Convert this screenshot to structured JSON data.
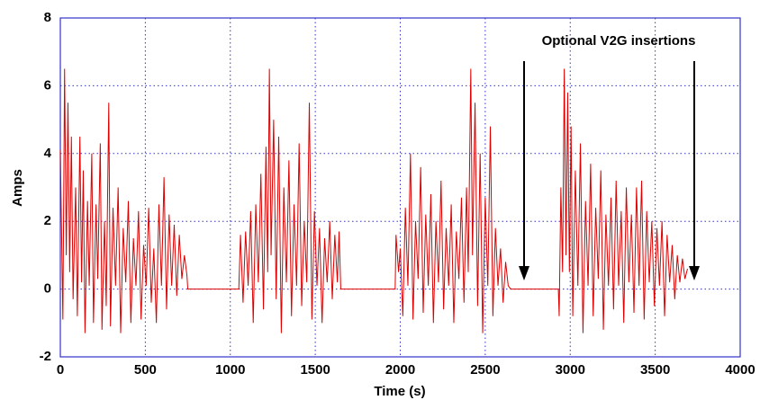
{
  "chart_data": {
    "type": "line",
    "xlabel": "Time (s)",
    "ylabel": "Amps",
    "annotation": "Optional V2G insertions",
    "color": "#dd0000",
    "grid": true,
    "xlim": [
      0,
      4000
    ],
    "ylim": [
      -2,
      8
    ],
    "xticks": [
      0,
      500,
      1000,
      1500,
      2000,
      2500,
      3000,
      3500,
      4000
    ],
    "yticks": [
      -2,
      0,
      2,
      4,
      6,
      8
    ],
    "x": [
      0,
      15,
      25,
      35,
      45,
      55,
      65,
      75,
      90,
      100,
      115,
      125,
      135,
      145,
      160,
      170,
      185,
      195,
      210,
      220,
      235,
      245,
      260,
      270,
      285,
      295,
      310,
      325,
      340,
      355,
      370,
      385,
      400,
      415,
      430,
      445,
      460,
      475,
      490,
      505,
      520,
      535,
      550,
      565,
      580,
      595,
      610,
      625,
      640,
      655,
      670,
      685,
      700,
      715,
      730,
      745,
      750,
      1050,
      1060,
      1075,
      1090,
      1105,
      1120,
      1135,
      1150,
      1165,
      1180,
      1195,
      1210,
      1220,
      1230,
      1240,
      1255,
      1270,
      1285,
      1300,
      1315,
      1330,
      1345,
      1360,
      1375,
      1390,
      1405,
      1420,
      1435,
      1450,
      1465,
      1480,
      1495,
      1510,
      1525,
      1540,
      1555,
      1570,
      1585,
      1600,
      1615,
      1630,
      1640,
      1650,
      1970,
      1975,
      1990,
      2000,
      2015,
      2030,
      2045,
      2060,
      2075,
      2090,
      2105,
      2120,
      2135,
      2150,
      2165,
      2180,
      2195,
      2210,
      2225,
      2240,
      2255,
      2270,
      2285,
      2300,
      2315,
      2330,
      2345,
      2360,
      2375,
      2390,
      2400,
      2415,
      2425,
      2440,
      2455,
      2470,
      2485,
      2500,
      2515,
      2530,
      2545,
      2560,
      2575,
      2590,
      2605,
      2620,
      2635,
      2650,
      2930,
      2935,
      2945,
      2955,
      2965,
      2975,
      2985,
      2995,
      3005,
      3015,
      3030,
      3045,
      3060,
      3075,
      3090,
      3105,
      3120,
      3135,
      3150,
      3165,
      3180,
      3195,
      3210,
      3225,
      3240,
      3255,
      3270,
      3285,
      3300,
      3315,
      3330,
      3345,
      3360,
      3375,
      3390,
      3405,
      3420,
      3435,
      3450,
      3465,
      3480,
      3495,
      3510,
      3525,
      3540,
      3555,
      3570,
      3585,
      3600,
      3615,
      3630,
      3645,
      3660,
      3675,
      3690
    ],
    "values": [
      4.1,
      -0.9,
      6.5,
      1.0,
      5.5,
      0.5,
      4.5,
      -0.3,
      3.0,
      -0.8,
      4.5,
      0.2,
      3.5,
      -1.3,
      2.6,
      0.1,
      4.0,
      -1.0,
      2.5,
      0.3,
      4.3,
      -1.2,
      2.0,
      -0.5,
      5.5,
      -1.1,
      2.4,
      0.1,
      3.0,
      -1.3,
      1.8,
      0.2,
      2.6,
      -1.0,
      1.5,
      0.1,
      2.3,
      -0.9,
      1.3,
      0.1,
      2.4,
      -0.4,
      1.2,
      -1.0,
      2.5,
      0.1,
      3.3,
      -0.6,
      2.2,
      0.1,
      1.9,
      -0.2,
      1.6,
      0.3,
      1.0,
      0.4,
      0,
      0,
      1.6,
      -0.4,
      1.7,
      0.1,
      2.3,
      -1.0,
      2.5,
      0.2,
      3.4,
      -0.6,
      4.2,
      0.5,
      6.5,
      1.0,
      5.0,
      -0.3,
      4.5,
      -1.3,
      3.0,
      0.2,
      3.8,
      -0.8,
      2.5,
      0.1,
      4.3,
      -0.5,
      2.0,
      0.2,
      5.5,
      -0.9,
      2.3,
      0.1,
      1.8,
      -1.0,
      1.5,
      0.2,
      2.0,
      -0.3,
      1.6,
      0.2,
      1.7,
      0,
      0,
      1.6,
      0.5,
      1.2,
      -0.8,
      2.4,
      0.1,
      4.0,
      -0.9,
      2.0,
      0.3,
      3.6,
      -0.7,
      2.2,
      0.1,
      2.8,
      -1.0,
      2.0,
      0.2,
      3.2,
      -0.6,
      1.8,
      0.1,
      2.5,
      -1.0,
      1.7,
      0.3,
      2.7,
      -0.4,
      3.0,
      0.5,
      6.5,
      1.0,
      5.5,
      -0.5,
      4.0,
      -1.3,
      2.7,
      0.1,
      4.8,
      -0.8,
      1.8,
      0.1,
      1.2,
      -0.4,
      0.8,
      0.1,
      0,
      0,
      -0.8,
      3.0,
      0.5,
      6.5,
      1.0,
      5.8,
      0.5,
      4.8,
      -0.8,
      3.5,
      0.1,
      4.3,
      -1.3,
      2.6,
      0.1,
      3.7,
      -0.8,
      2.4,
      0.3,
      3.5,
      -1.2,
      2.2,
      0.1,
      2.7,
      -0.6,
      3.2,
      0.1,
      2.3,
      -1.0,
      3.0,
      0.2,
      2.2,
      -0.7,
      3.0,
      0.1,
      3.2,
      -0.9,
      2.3,
      0.2,
      2.0,
      -0.5,
      1.8,
      0.1,
      2.0,
      -0.8,
      1.6,
      0.2,
      1.3,
      -0.3,
      1.0,
      0.2,
      0.9,
      0.3,
      0.6
    ]
  }
}
